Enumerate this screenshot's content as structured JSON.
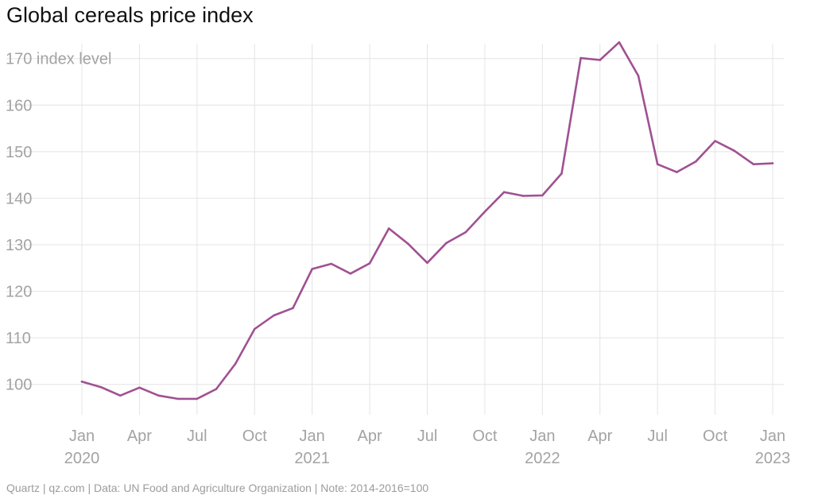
{
  "page": {
    "title": "Global cereals price index",
    "footer": "Quartz | qz.com | Data: UN Food and Agriculture Organization | Note: 2014-2016=100"
  },
  "chart_data": {
    "type": "line",
    "title": "Global cereals price index",
    "ylabel": "index level",
    "ylim": [
      95,
      172
    ],
    "yticks": [
      100,
      110,
      120,
      130,
      140,
      150,
      160,
      170
    ],
    "xlim": [
      "2020-01",
      "2023-01"
    ],
    "xticks": [
      {
        "month": "2020-01",
        "label": "Jan",
        "year": "2020"
      },
      {
        "month": "2020-04",
        "label": "Apr",
        "year": ""
      },
      {
        "month": "2020-07",
        "label": "Jul",
        "year": ""
      },
      {
        "month": "2020-10",
        "label": "Oct",
        "year": ""
      },
      {
        "month": "2021-01",
        "label": "Jan",
        "year": "2021"
      },
      {
        "month": "2021-04",
        "label": "Apr",
        "year": ""
      },
      {
        "month": "2021-07",
        "label": "Jul",
        "year": ""
      },
      {
        "month": "2021-10",
        "label": "Oct",
        "year": ""
      },
      {
        "month": "2022-01",
        "label": "Jan",
        "year": "2022"
      },
      {
        "month": "2022-04",
        "label": "Apr",
        "year": ""
      },
      {
        "month": "2022-07",
        "label": "Jul",
        "year": ""
      },
      {
        "month": "2022-10",
        "label": "Oct",
        "year": ""
      },
      {
        "month": "2023-01",
        "label": "Jan",
        "year": "2023"
      }
    ],
    "grid": true,
    "series": [
      {
        "color": "#a05192",
        "x": [
          "2020-01",
          "2020-02",
          "2020-03",
          "2020-04",
          "2020-05",
          "2020-06",
          "2020-07",
          "2020-08",
          "2020-09",
          "2020-10",
          "2020-11",
          "2020-12",
          "2021-01",
          "2021-02",
          "2021-03",
          "2021-04",
          "2021-05",
          "2021-06",
          "2021-07",
          "2021-08",
          "2021-09",
          "2021-10",
          "2021-11",
          "2021-12",
          "2022-01",
          "2022-02",
          "2022-03",
          "2022-04",
          "2022-05",
          "2022-06",
          "2022-07",
          "2022-08",
          "2022-09",
          "2022-10",
          "2022-11",
          "2022-12",
          "2023-01"
        ],
        "values": [
          100.6,
          99.4,
          97.6,
          99.3,
          97.6,
          96.9,
          96.9,
          99.0,
          104.4,
          111.9,
          114.8,
          116.4,
          124.8,
          125.9,
          123.8,
          126.0,
          133.5,
          130.2,
          126.1,
          130.4,
          132.7,
          137.1,
          141.3,
          140.5,
          140.6,
          145.3,
          170.1,
          169.7,
          173.5,
          166.3,
          147.3,
          145.6,
          147.9,
          152.3,
          150.2,
          147.3,
          147.5
        ]
      }
    ]
  }
}
